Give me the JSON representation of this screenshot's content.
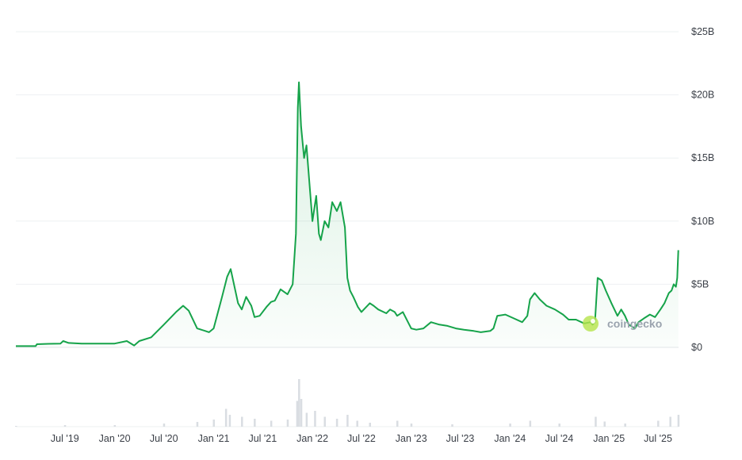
{
  "chart_data": {
    "type": "area",
    "xlabel": "",
    "ylabel": "",
    "y_unit": "USD",
    "ylim": [
      0,
      25000000000
    ],
    "y_ticks": [
      0,
      5000000000,
      10000000000,
      15000000000,
      20000000000,
      25000000000
    ],
    "y_tick_labels": [
      "$0",
      "$5B",
      "$10B",
      "$15B",
      "$20B",
      "$25B"
    ],
    "xlim": [
      "2019-01-01",
      "2025-09-15"
    ],
    "x_ticks": [
      "2019-07-01",
      "2020-01-01",
      "2020-07-01",
      "2021-01-01",
      "2021-07-01",
      "2022-01-01",
      "2022-07-01",
      "2023-01-01",
      "2023-07-01",
      "2024-01-01",
      "2024-07-01",
      "2025-01-01",
      "2025-07-01"
    ],
    "x_tick_labels": [
      "Jul '19",
      "Jan '20",
      "Jul '20",
      "Jan '21",
      "Jul '21",
      "Jan '22",
      "Jul '22",
      "Jan '23",
      "Jul '23",
      "Jan '24",
      "Jul '24",
      "Jan '25",
      "Jul '25"
    ],
    "grid": "horizontal",
    "line_color": "#16a34a",
    "fill_color": "#16a34a",
    "volume_color": "#d9dde2",
    "watermark": "coingecko",
    "series": [
      {
        "x": [
          "2019-01-01",
          "2019-03-15",
          "2019-03-20",
          "2019-05-01",
          "2019-06-15",
          "2019-06-25",
          "2019-07-15",
          "2019-09-01",
          "2019-11-01",
          "2020-01-01",
          "2020-02-15",
          "2020-03-13",
          "2020-04-01",
          "2020-05-15",
          "2020-07-01",
          "2020-08-15",
          "2020-09-10",
          "2020-10-01",
          "2020-11-01",
          "2020-12-01",
          "2020-12-15",
          "2021-01-01",
          "2021-02-01",
          "2021-02-20",
          "2021-03-05",
          "2021-04-01",
          "2021-04-15",
          "2021-05-01",
          "2021-05-20",
          "2021-06-01",
          "2021-06-20",
          "2021-07-15",
          "2021-08-01",
          "2021-08-15",
          "2021-09-05",
          "2021-10-01",
          "2021-10-20",
          "2021-11-01",
          "2021-11-08",
          "2021-11-12",
          "2021-11-20",
          "2021-12-01",
          "2021-12-10",
          "2022-01-01",
          "2022-01-15",
          "2022-01-25",
          "2022-02-01",
          "2022-02-15",
          "2022-03-01",
          "2022-03-15",
          "2022-04-01",
          "2022-04-15",
          "2022-05-01",
          "2022-05-10",
          "2022-05-20",
          "2022-06-01",
          "2022-06-18",
          "2022-07-01",
          "2022-08-01",
          "2022-08-15",
          "2022-09-01",
          "2022-10-01",
          "2022-10-15",
          "2022-11-01",
          "2022-11-10",
          "2022-12-01",
          "2023-01-01",
          "2023-01-20",
          "2023-02-15",
          "2023-03-15",
          "2023-04-15",
          "2023-05-15",
          "2023-06-15",
          "2023-07-15",
          "2023-08-20",
          "2023-09-15",
          "2023-10-20",
          "2023-11-01",
          "2023-11-15",
          "2023-12-15",
          "2024-01-15",
          "2024-02-15",
          "2024-03-05",
          "2024-03-15",
          "2024-04-01",
          "2024-04-20",
          "2024-05-15",
          "2024-06-15",
          "2024-07-15",
          "2024-08-05",
          "2024-09-01",
          "2024-10-01",
          "2024-10-25",
          "2024-11-01",
          "2024-11-10",
          "2024-11-20",
          "2024-12-05",
          "2024-12-20",
          "2025-01-10",
          "2025-02-01",
          "2025-02-15",
          "2025-03-01",
          "2025-03-15",
          "2025-04-07",
          "2025-04-20",
          "2025-05-10",
          "2025-06-01",
          "2025-06-20",
          "2025-07-10",
          "2025-07-25",
          "2025-08-10",
          "2025-08-20",
          "2025-08-28",
          "2025-09-05",
          "2025-09-10",
          "2025-09-14"
        ],
        "values": [
          0.1,
          0.1,
          0.25,
          0.28,
          0.3,
          0.5,
          0.35,
          0.3,
          0.3,
          0.3,
          0.5,
          0.15,
          0.5,
          0.8,
          1.8,
          2.8,
          3.3,
          2.9,
          1.5,
          1.3,
          1.2,
          1.5,
          4.0,
          5.6,
          6.2,
          3.5,
          3.0,
          4.0,
          3.3,
          2.4,
          2.5,
          3.2,
          3.6,
          3.7,
          4.6,
          4.2,
          5.0,
          9.0,
          19.0,
          21.0,
          17.5,
          15.0,
          16.0,
          10.0,
          12.0,
          9.0,
          8.5,
          10.0,
          9.5,
          11.5,
          10.8,
          11.5,
          9.5,
          5.5,
          4.5,
          4.0,
          3.2,
          2.8,
          3.5,
          3.3,
          3.0,
          2.7,
          3.0,
          2.8,
          2.5,
          2.8,
          1.5,
          1.4,
          1.5,
          2.0,
          1.8,
          1.7,
          1.5,
          1.4,
          1.3,
          1.2,
          1.3,
          1.5,
          2.5,
          2.6,
          2.3,
          2.0,
          2.5,
          3.8,
          4.3,
          3.8,
          3.3,
          3.0,
          2.6,
          2.2,
          2.2,
          1.9,
          2.0,
          1.8,
          2.0,
          5.5,
          5.3,
          4.5,
          3.5,
          2.5,
          3.0,
          2.5,
          1.8,
          1.5,
          2.0,
          2.3,
          2.6,
          2.4,
          3.0,
          3.5,
          4.3,
          4.5,
          5.0,
          4.8,
          5.5,
          7.7
        ]
      }
    ],
    "volume": {
      "x": [
        "2019-01-01",
        "2019-07-01",
        "2020-01-01",
        "2020-07-01",
        "2020-11-01",
        "2021-01-01",
        "2021-02-15",
        "2021-03-01",
        "2021-04-15",
        "2021-06-01",
        "2021-08-01",
        "2021-10-01",
        "2021-11-05",
        "2021-11-12",
        "2021-11-20",
        "2021-12-10",
        "2022-01-10",
        "2022-02-15",
        "2022-04-01",
        "2022-05-10",
        "2022-06-15",
        "2022-08-01",
        "2022-11-10",
        "2023-01-01",
        "2023-06-01",
        "2024-01-01",
        "2024-03-15",
        "2024-07-01",
        "2024-11-12",
        "2024-12-15",
        "2025-03-01",
        "2025-07-01",
        "2025-08-15",
        "2025-09-14"
      ],
      "values": [
        0.2,
        0.4,
        0.4,
        0.8,
        1.2,
        1.8,
        4.5,
        3.0,
        2.5,
        2.0,
        1.5,
        1.8,
        6.5,
        12.0,
        7.0,
        3.5,
        4.0,
        2.5,
        2.0,
        3.0,
        1.5,
        1.0,
        1.5,
        0.8,
        0.6,
        0.8,
        1.5,
        0.8,
        2.5,
        1.3,
        0.8,
        1.5,
        2.5,
        3.0
      ]
    }
  }
}
